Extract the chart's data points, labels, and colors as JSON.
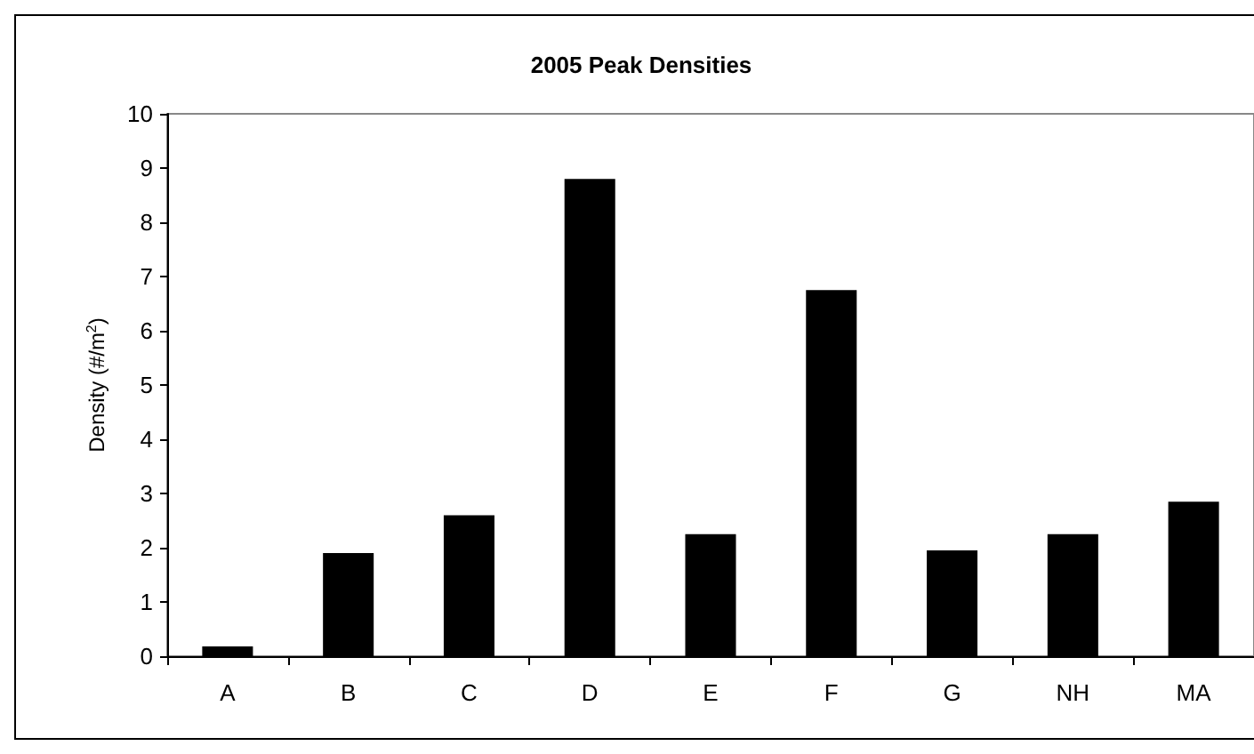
{
  "chart_data": {
    "type": "bar",
    "title": "2005 Peak Densities",
    "ylabel": "Density (#/m$^{2}$)",
    "categories": [
      "A",
      "B",
      "C",
      "D",
      "E",
      "F",
      "G",
      "NH",
      "MA"
    ],
    "values": [
      0.18,
      1.9,
      2.6,
      8.8,
      2.25,
      6.75,
      1.95,
      2.25,
      2.85
    ],
    "color": "#000000",
    "ylim": [
      0,
      10
    ],
    "yticks": [
      0,
      1,
      2,
      3,
      4,
      5,
      6,
      7,
      8,
      9,
      10
    ],
    "grid": false
  }
}
